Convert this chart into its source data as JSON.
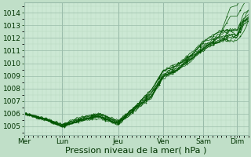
{
  "xlabel": "Pression niveau de la mer( hPa )",
  "bg_color": "#c0dfc8",
  "plot_bg_color": "#cce8d4",
  "grid_major_color": "#9abcaa",
  "grid_minor_color": "#b8d8c0",
  "line_color": "#005500",
  "ylim": [
    1004.3,
    1014.8
  ],
  "yticks": [
    1005,
    1006,
    1007,
    1008,
    1009,
    1010,
    1011,
    1012,
    1013,
    1014
  ],
  "day_labels": [
    "Mer",
    "Lun",
    "Jeu",
    "Ven",
    "Sam",
    "Dim"
  ],
  "day_positions": [
    0,
    0.17,
    0.42,
    0.62,
    0.8,
    0.95
  ],
  "xlim": [
    0.0,
    1.0
  ],
  "xlabel_fontsize": 8,
  "tick_fontsize": 6.5,
  "num_lines": 10
}
